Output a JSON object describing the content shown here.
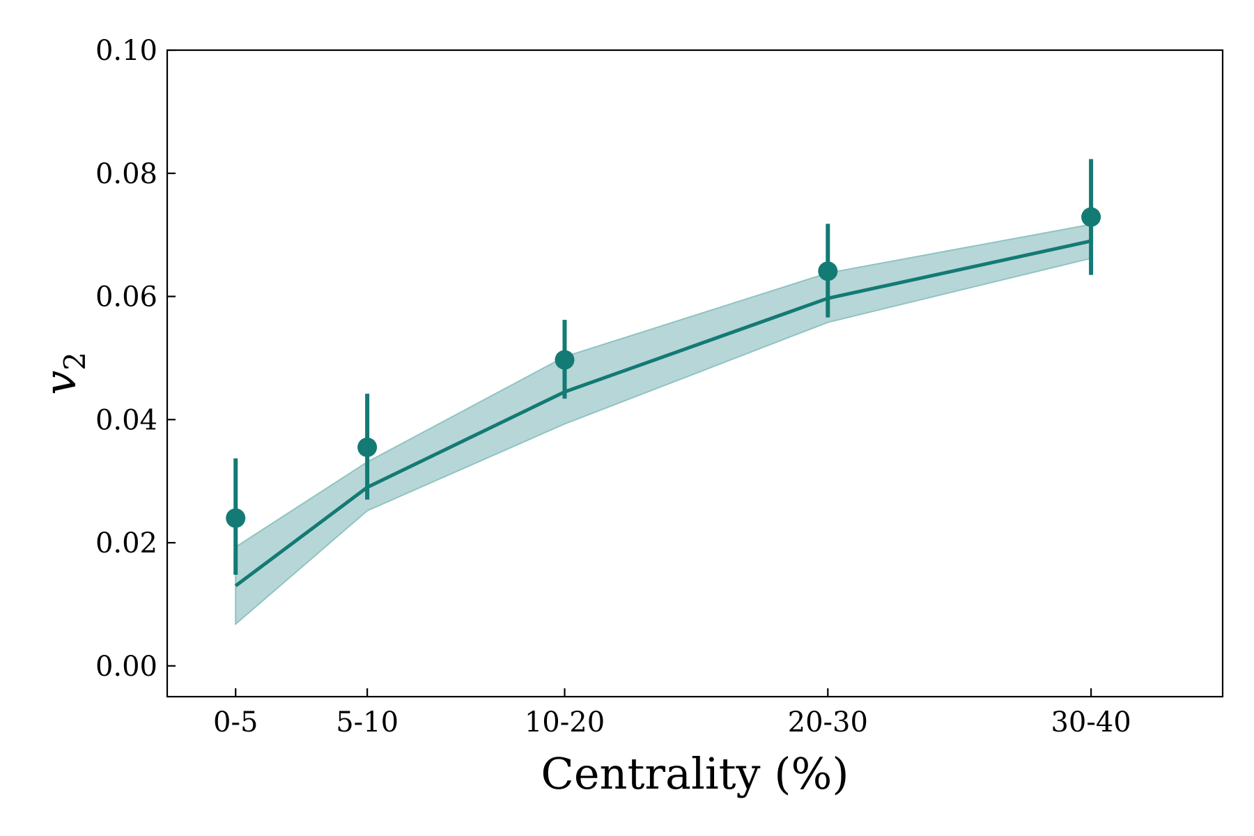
{
  "chart_data": {
    "type": "line",
    "title": "",
    "xlabel": "Centrality (%)",
    "ylabel_base": "v",
    "ylabel_sub": "2",
    "x_labels": [
      "0-5",
      "5-10",
      "10-20",
      "20-30",
      "30-40"
    ],
    "x_values": [
      2.5,
      7.5,
      15,
      25,
      35
    ],
    "xlim": [
      -0.1,
      40
    ],
    "ylim": [
      -0.005,
      0.1
    ],
    "yticks": [
      0.0,
      0.02,
      0.04,
      0.06,
      0.08,
      0.1
    ],
    "ytick_labels": [
      "0.00",
      "0.02",
      "0.04",
      "0.06",
      "0.08",
      "0.10"
    ],
    "grid": false,
    "color": "#137a74",
    "band_color": "#b7d6d7",
    "theory": {
      "values": [
        0.013,
        0.029,
        0.0445,
        0.0597,
        0.069
      ],
      "band_lower": [
        0.0068,
        0.0252,
        0.0393,
        0.0558,
        0.0662
      ],
      "band_upper": [
        0.0193,
        0.0331,
        0.0502,
        0.0638,
        0.0717
      ]
    },
    "data": {
      "values": [
        0.024,
        0.0355,
        0.0497,
        0.0641,
        0.0729
      ],
      "err_lower": [
        0.0148,
        0.027,
        0.0434,
        0.0566,
        0.0635
      ],
      "err_upper": [
        0.0337,
        0.0442,
        0.0562,
        0.0718,
        0.0823
      ]
    }
  }
}
